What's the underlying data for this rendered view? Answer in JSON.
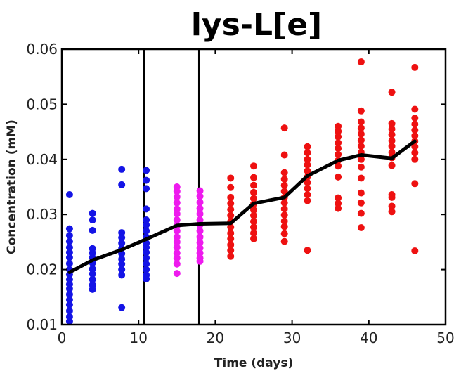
{
  "chart_data": {
    "type": "scatter",
    "title": "lys-L[e]",
    "xlabel": "Time (days)",
    "ylabel": "Concentration (mM)",
    "xlim": [
      0,
      50
    ],
    "ylim": [
      0.01,
      0.06
    ],
    "xticks": [
      0,
      10,
      20,
      30,
      40,
      50
    ],
    "yticks": [
      0.01,
      0.02,
      0.03,
      0.04,
      0.05,
      0.06
    ],
    "xtick_labels": [
      "0",
      "10",
      "20",
      "30",
      "40",
      "50"
    ],
    "ytick_labels": [
      "0.01",
      "0.02",
      "0.03",
      "0.04",
      "0.05",
      "0.06"
    ],
    "grid": false,
    "legend": "none",
    "vertical_lines": [
      10.7,
      17.9
    ],
    "series": [
      {
        "color": "#1414e6",
        "points": [
          [
            1,
            0.0336
          ],
          [
            1,
            0.0274
          ],
          [
            1,
            0.0262
          ],
          [
            1,
            0.0251
          ],
          [
            1,
            0.024
          ],
          [
            1,
            0.0231
          ],
          [
            1,
            0.0222
          ],
          [
            1,
            0.0211
          ],
          [
            1,
            0.02
          ],
          [
            1,
            0.0191
          ],
          [
            1,
            0.0182
          ],
          [
            1,
            0.0173
          ],
          [
            1,
            0.0165
          ],
          [
            1,
            0.0155
          ],
          [
            1,
            0.0145
          ],
          [
            1,
            0.0136
          ],
          [
            1,
            0.0125
          ],
          [
            1,
            0.0114
          ],
          [
            1,
            0.0106
          ],
          [
            4,
            0.0302
          ],
          [
            4,
            0.029
          ],
          [
            4,
            0.0271
          ],
          [
            4,
            0.0238
          ],
          [
            4,
            0.023
          ],
          [
            4,
            0.0222
          ],
          [
            4,
            0.0212
          ],
          [
            4,
            0.0201
          ],
          [
            4,
            0.0192
          ],
          [
            4,
            0.0182
          ],
          [
            4,
            0.0172
          ],
          [
            4,
            0.0164
          ],
          [
            7.8,
            0.0382
          ],
          [
            7.8,
            0.0354
          ],
          [
            7.8,
            0.0267
          ],
          [
            7.8,
            0.0258
          ],
          [
            7.8,
            0.0248
          ],
          [
            7.8,
            0.0238
          ],
          [
            7.8,
            0.0229
          ],
          [
            7.8,
            0.0219
          ],
          [
            7.8,
            0.021
          ],
          [
            7.8,
            0.02
          ],
          [
            7.8,
            0.019
          ],
          [
            7.8,
            0.0131
          ],
          [
            11,
            0.038
          ],
          [
            11,
            0.0362
          ],
          [
            11,
            0.0347
          ],
          [
            11,
            0.031
          ],
          [
            11,
            0.029
          ],
          [
            11,
            0.0281
          ],
          [
            11,
            0.027
          ],
          [
            11,
            0.0259
          ],
          [
            11,
            0.0248
          ],
          [
            11,
            0.024
          ],
          [
            11,
            0.0231
          ],
          [
            11,
            0.0221
          ],
          [
            11,
            0.021
          ],
          [
            11,
            0.02
          ],
          [
            11,
            0.019
          ],
          [
            11,
            0.0183
          ]
        ]
      },
      {
        "color": "#ee1aee",
        "points": [
          [
            15,
            0.035
          ],
          [
            15,
            0.0342
          ],
          [
            15,
            0.0332
          ],
          [
            15,
            0.0321
          ],
          [
            15,
            0.031
          ],
          [
            15,
            0.0301
          ],
          [
            15,
            0.029
          ],
          [
            15,
            0.0279
          ],
          [
            15,
            0.027
          ],
          [
            15,
            0.0259
          ],
          [
            15,
            0.025
          ],
          [
            15,
            0.024
          ],
          [
            15,
            0.023
          ],
          [
            15,
            0.0221
          ],
          [
            15,
            0.021
          ],
          [
            15,
            0.0193
          ],
          [
            18,
            0.0343
          ],
          [
            18,
            0.0333
          ],
          [
            18,
            0.0322
          ],
          [
            18,
            0.0311
          ],
          [
            18,
            0.0301
          ],
          [
            18,
            0.029
          ],
          [
            18,
            0.0281
          ],
          [
            18,
            0.027
          ],
          [
            18,
            0.0259
          ],
          [
            18,
            0.0249
          ],
          [
            18,
            0.0239
          ],
          [
            18,
            0.023
          ],
          [
            18,
            0.0221
          ],
          [
            18,
            0.0215
          ]
        ]
      },
      {
        "color": "#ee1111",
        "points": [
          [
            22,
            0.0366
          ],
          [
            22,
            0.0349
          ],
          [
            22,
            0.0331
          ],
          [
            22,
            0.032
          ],
          [
            22,
            0.0309
          ],
          [
            22,
            0.0298
          ],
          [
            22,
            0.0287
          ],
          [
            22,
            0.0277
          ],
          [
            22,
            0.0266
          ],
          [
            22,
            0.0256
          ],
          [
            22,
            0.0245
          ],
          [
            22,
            0.0235
          ],
          [
            22,
            0.0224
          ],
          [
            25,
            0.0388
          ],
          [
            25,
            0.0367
          ],
          [
            25,
            0.0353
          ],
          [
            25,
            0.034
          ],
          [
            25,
            0.0329
          ],
          [
            25,
            0.0319
          ],
          [
            25,
            0.0308
          ],
          [
            25,
            0.0298
          ],
          [
            25,
            0.0287
          ],
          [
            25,
            0.0277
          ],
          [
            25,
            0.0266
          ],
          [
            25,
            0.0256
          ],
          [
            29,
            0.0457
          ],
          [
            29,
            0.0408
          ],
          [
            29,
            0.0376
          ],
          [
            29,
            0.0364
          ],
          [
            29,
            0.0353
          ],
          [
            29,
            0.0342
          ],
          [
            29,
            0.0331
          ],
          [
            29,
            0.0321
          ],
          [
            29,
            0.031
          ],
          [
            29,
            0.0299
          ],
          [
            29,
            0.0288
          ],
          [
            29,
            0.0278
          ],
          [
            29,
            0.0265
          ],
          [
            29,
            0.0251
          ],
          [
            32,
            0.0423
          ],
          [
            32,
            0.0412
          ],
          [
            32,
            0.04
          ],
          [
            32,
            0.039
          ],
          [
            32,
            0.0379
          ],
          [
            32,
            0.0368
          ],
          [
            32,
            0.0358
          ],
          [
            32,
            0.0347
          ],
          [
            32,
            0.0336
          ],
          [
            32,
            0.0325
          ],
          [
            32,
            0.0235
          ],
          [
            36,
            0.046
          ],
          [
            36,
            0.0451
          ],
          [
            36,
            0.0441
          ],
          [
            36,
            0.043
          ],
          [
            36,
            0.042
          ],
          [
            36,
            0.0409
          ],
          [
            36,
            0.0398
          ],
          [
            36,
            0.0388
          ],
          [
            36,
            0.0368
          ],
          [
            36,
            0.033
          ],
          [
            36,
            0.032
          ],
          [
            36,
            0.0311
          ],
          [
            39,
            0.0577
          ],
          [
            39,
            0.0488
          ],
          [
            39,
            0.0468
          ],
          [
            39,
            0.0457
          ],
          [
            39,
            0.0446
          ],
          [
            39,
            0.0435
          ],
          [
            39,
            0.0424
          ],
          [
            39,
            0.0413
          ],
          [
            39,
            0.04
          ],
          [
            39,
            0.0386
          ],
          [
            39,
            0.0366
          ],
          [
            39,
            0.0339
          ],
          [
            39,
            0.0321
          ],
          [
            39,
            0.0302
          ],
          [
            39,
            0.0276
          ],
          [
            43,
            0.0522
          ],
          [
            43,
            0.0465
          ],
          [
            43,
            0.0455
          ],
          [
            43,
            0.0445
          ],
          [
            43,
            0.0434
          ],
          [
            43,
            0.0424
          ],
          [
            43,
            0.0413
          ],
          [
            43,
            0.0403
          ],
          [
            43,
            0.0389
          ],
          [
            43,
            0.0336
          ],
          [
            43,
            0.0331
          ],
          [
            43,
            0.0315
          ],
          [
            43,
            0.0305
          ],
          [
            46,
            0.0567
          ],
          [
            46,
            0.0491
          ],
          [
            46,
            0.0475
          ],
          [
            46,
            0.0464
          ],
          [
            46,
            0.0453
          ],
          [
            46,
            0.0443
          ],
          [
            46,
            0.0433
          ],
          [
            46,
            0.0423
          ],
          [
            46,
            0.0412
          ],
          [
            46,
            0.04
          ],
          [
            46,
            0.0356
          ],
          [
            46,
            0.0234
          ]
        ]
      }
    ],
    "mean_line": {
      "color": "#000000",
      "x": [
        1,
        4,
        7.8,
        11,
        15,
        18,
        22,
        25,
        29,
        32,
        36,
        39,
        43,
        46
      ],
      "y": [
        0.0195,
        0.0217,
        0.0236,
        0.0255,
        0.028,
        0.0283,
        0.0284,
        0.032,
        0.0331,
        0.037,
        0.0398,
        0.0408,
        0.0402,
        0.0433
      ]
    }
  }
}
